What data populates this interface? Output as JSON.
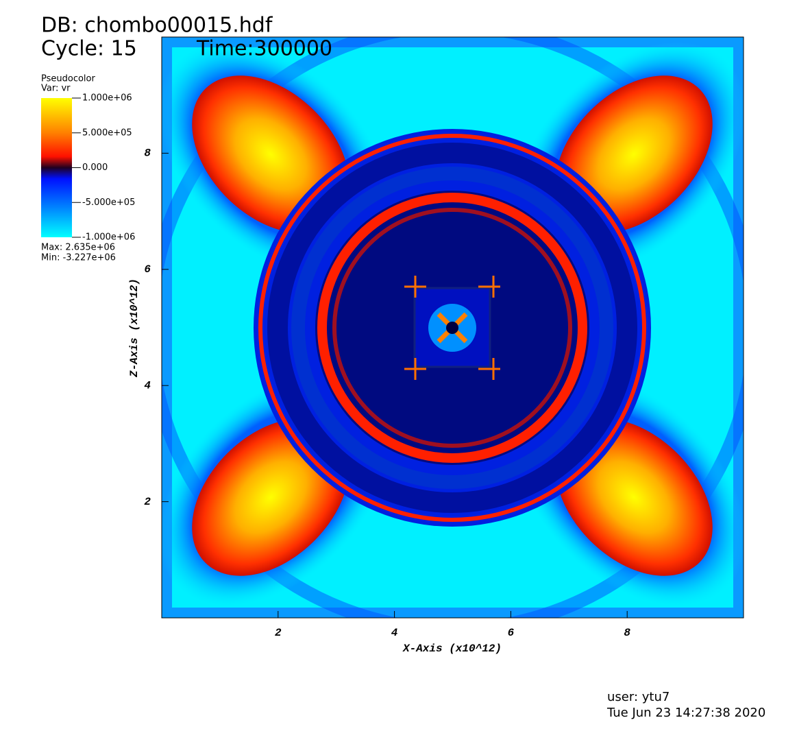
{
  "header": {
    "db": "DB: chombo00015.hdf",
    "cycle": "Cycle: 15",
    "time": "Time:300000"
  },
  "legend": {
    "title": "Pseudocolor",
    "var": "Var: vr",
    "ticks": [
      {
        "value": 1000000,
        "label": "1.000e+06"
      },
      {
        "value": 500000,
        "label": "5.000e+05"
      },
      {
        "value": 0,
        "label": "0.000"
      },
      {
        "value": -500000,
        "label": "-5.000e+05"
      },
      {
        "value": -1000000,
        "label": "-1.000e+06"
      }
    ],
    "max": "Max:  2.635e+06",
    "min": "Min: -3.227e+06"
  },
  "chart_data": {
    "type": "heatmap",
    "x_label": "X-Axis (x10^12)",
    "y_label": "Z-Axis (x10^12)",
    "xlim": [
      0,
      10
    ],
    "ylim": [
      0,
      10
    ],
    "xticks": [
      2,
      4,
      6,
      8
    ],
    "yticks": [
      2,
      4,
      6,
      8
    ]
  },
  "footer": {
    "user": "user: ytu7",
    "date": "Tue Jun 23 14:27:38 2020"
  }
}
